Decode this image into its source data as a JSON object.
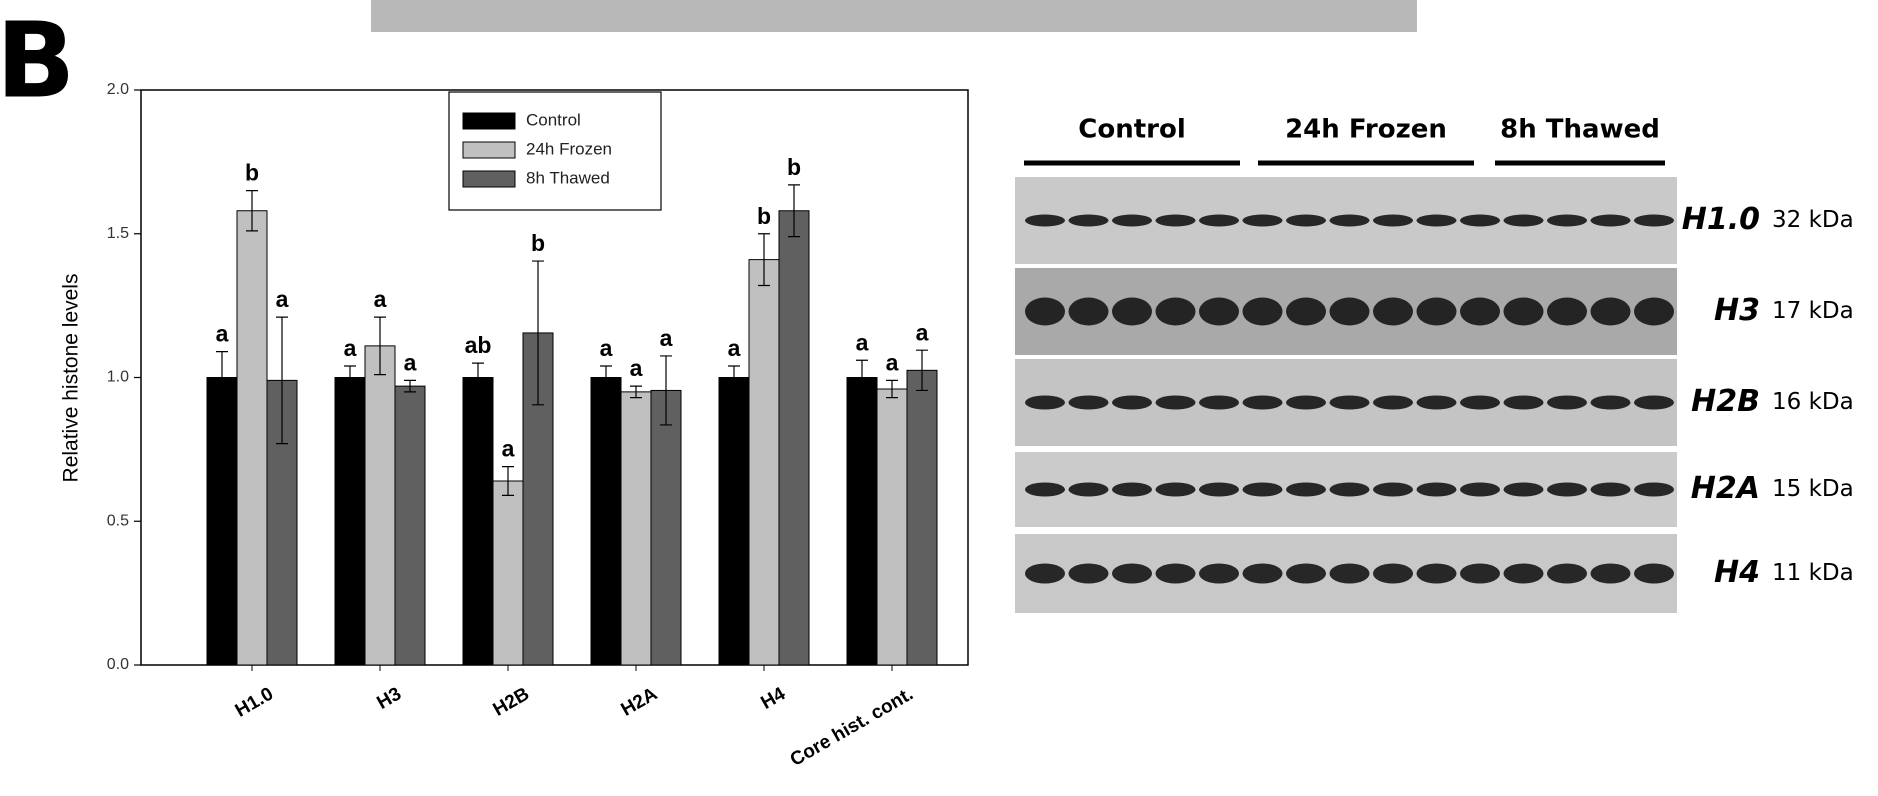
{
  "panel_label": "B",
  "chart_data": {
    "type": "bar",
    "ylabel": "Relative histone levels",
    "categories": [
      "H1.0",
      "H3",
      "H2B",
      "H2A",
      "H4",
      "Core hist. cont."
    ],
    "ylim": [
      0,
      2
    ],
    "yticks": [
      {
        "value": 0,
        "label": "0.0"
      },
      {
        "value": 0.5,
        "label": "0.5"
      },
      {
        "value": 1,
        "label": "1.0"
      },
      {
        "value": 1.5,
        "label": "1.5"
      },
      {
        "value": 2,
        "label": "2.0"
      }
    ],
    "series": [
      {
        "name": "Control",
        "color": "#000000",
        "values": [
          1.0,
          1.0,
          1.0,
          1.0,
          1.0,
          1.0
        ],
        "errors": [
          0.09,
          0.04,
          0.05,
          0.04,
          0.04,
          0.06
        ],
        "letters": [
          "a",
          "a",
          "ab",
          "a",
          "a",
          "a"
        ]
      },
      {
        "name": "24h Frozen",
        "color": "#c0c0c0",
        "values": [
          1.58,
          1.11,
          0.64,
          0.95,
          1.41,
          0.96
        ],
        "errors": [
          0.07,
          0.1,
          0.05,
          0.02,
          0.09,
          0.03
        ],
        "letters": [
          "b",
          "a",
          "a",
          "a",
          "b",
          "a"
        ]
      },
      {
        "name": "8h Thawed",
        "color": "#606060",
        "values": [
          0.99,
          0.97,
          1.155,
          0.955,
          1.58,
          1.025
        ],
        "errors": [
          0.22,
          0.02,
          0.25,
          0.12,
          0.09,
          0.07
        ],
        "letters": [
          "a",
          "a",
          "b",
          "a",
          "b",
          "a"
        ]
      }
    ]
  },
  "blot": {
    "groups": [
      "Control",
      "24h Frozen",
      "8h Thawed"
    ],
    "rows": [
      {
        "name": "H1.0",
        "size": "32 kDa"
      },
      {
        "name": "H3",
        "size": "17 kDa"
      },
      {
        "name": "H2B",
        "size": "16 kDa"
      },
      {
        "name": "H2A",
        "size": "15 kDa"
      },
      {
        "name": "H4",
        "size": "11 kDa"
      }
    ]
  }
}
